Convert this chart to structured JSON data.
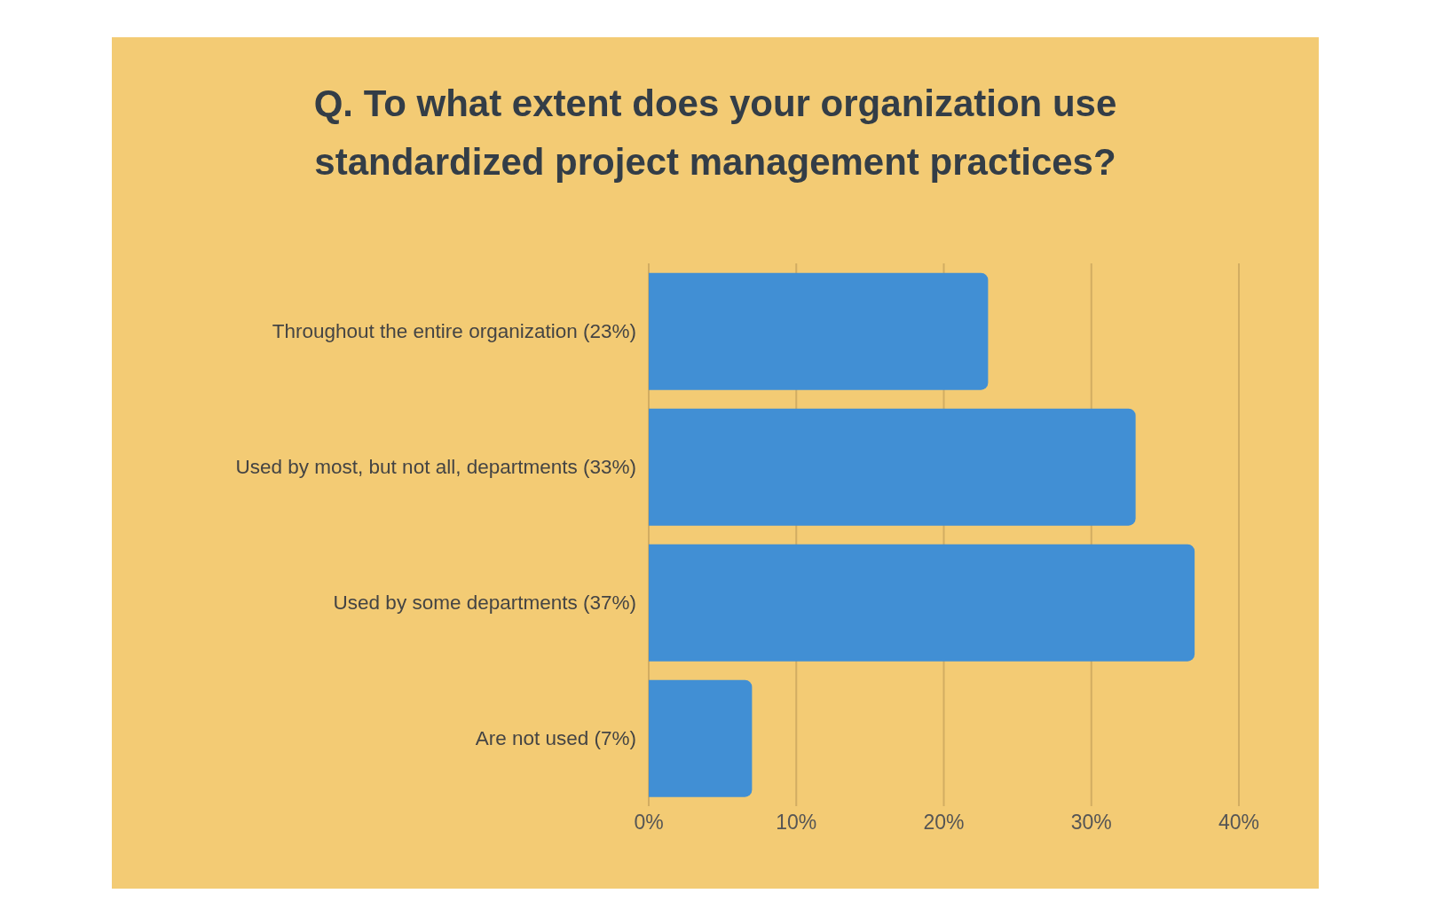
{
  "chart_data": {
    "type": "bar",
    "orientation": "horizontal",
    "title": "Q. To what extent does your organization use standardized project management practices?",
    "categories": [
      "Throughout the entire organization (23%)",
      "Used by most, but not all, departments (33%)",
      "Used by some departments (37%)",
      "Are not used (7%)"
    ],
    "values": [
      23,
      33,
      37,
      7
    ],
    "color": "#418fd4",
    "xlim": [
      0,
      40
    ],
    "xticks": [
      {
        "value": 0,
        "label": "0%"
      },
      {
        "value": 10,
        "label": "10%"
      },
      {
        "value": 20,
        "label": "20%"
      },
      {
        "value": 30,
        "label": "30%"
      },
      {
        "value": 40,
        "label": "40%"
      }
    ],
    "grid": "x",
    "legend": false
  }
}
